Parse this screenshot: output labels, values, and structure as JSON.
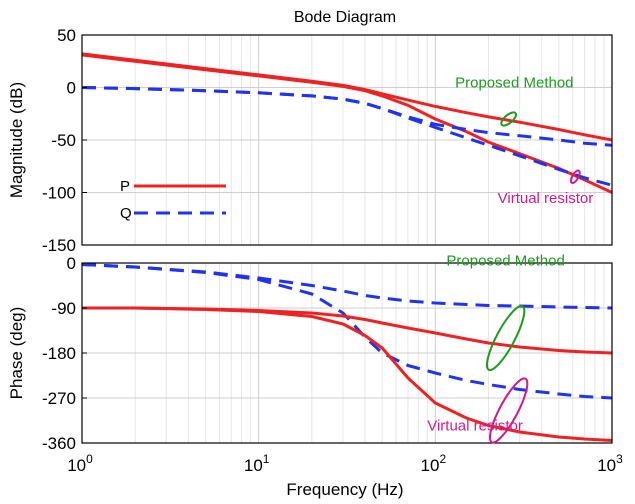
{
  "chart_data": {
    "title": "Bode Diagram",
    "type": "line",
    "xlabel": "Frequency  (Hz)",
    "xscale": "log",
    "xlim": [
      1,
      1000
    ],
    "x_ticks": [
      {
        "value": 1,
        "base": "10",
        "exp": "0"
      },
      {
        "value": 10,
        "base": "10",
        "exp": "1"
      },
      {
        "value": 100,
        "base": "10",
        "exp": "2"
      },
      {
        "value": 1000,
        "base": "10",
        "exp": "3"
      }
    ],
    "grid": true,
    "legend_position": "left",
    "colors": {
      "P": "#ee2222",
      "Q": "#2233ee",
      "proposed": "#1e9a1e",
      "virtual": "#d01a8c"
    },
    "legend": [
      {
        "name": "P",
        "style": "solid",
        "color": "#ee2222"
      },
      {
        "name": "Q",
        "style": "dashed",
        "color": "#2233ee"
      }
    ],
    "panels": [
      {
        "ylabel": "Magnitude (dB)",
        "ylim": [
          -150,
          50
        ],
        "y_ticks": [
          50,
          0,
          -50,
          -100,
          -150
        ],
        "tick_labels": [
          "50",
          "0",
          "-50",
          "-100",
          "-150"
        ],
        "annotations": [
          {
            "text": "Proposed Method",
            "color": "#1e9a1e",
            "at": [
              280,
              0
            ],
            "align": "middle"
          },
          {
            "text": "Virtual resistor",
            "color": "#d01a8c",
            "at": [
              420,
              -110
            ],
            "align": "middle"
          }
        ],
        "series": [
          {
            "name": "P",
            "style": "solid",
            "color": "#ee2222",
            "x": [
              1,
              2,
              5,
              10,
              20,
              30,
              40,
              50,
              70,
              100,
              150,
              200,
              300,
              500,
              700,
              1000
            ],
            "y": [
              32,
              26,
              18,
              12,
              6,
              2,
              -2,
              -6,
              -12,
              -18,
              -24,
              -28,
              -33,
              -40,
              -45,
              -50
            ]
          },
          {
            "name": "P",
            "style": "solid",
            "color": "#ee2222",
            "x": [
              1,
              2,
              5,
              10,
              20,
              30,
              40,
              50,
              70,
              100,
              150,
              200,
              300,
              500,
              700,
              1000
            ],
            "y": [
              31,
              25,
              17,
              11,
              5,
              1,
              -3,
              -8,
              -17,
              -30,
              -42,
              -52,
              -63,
              -77,
              -88,
              -100
            ]
          },
          {
            "name": "Q",
            "style": "dashed",
            "color": "#2233ee",
            "x": [
              1,
              2,
              5,
              10,
              20,
              30,
              40,
              50,
              70,
              100,
              150,
              200,
              300,
              500,
              700,
              1000
            ],
            "y": [
              0,
              -1,
              -3,
              -5,
              -8,
              -11,
              -15,
              -20,
              -28,
              -35,
              -40,
              -43,
              -46,
              -50,
              -53,
              -55
            ]
          },
          {
            "name": "Q",
            "style": "dashed",
            "color": "#2233ee",
            "x": [
              1,
              2,
              5,
              10,
              20,
              30,
              40,
              50,
              70,
              100,
              150,
              200,
              300,
              500,
              700,
              1000
            ],
            "y": [
              0,
              -1,
              -3,
              -5,
              -8,
              -11,
              -15,
              -20,
              -29,
              -38,
              -48,
              -55,
              -65,
              -78,
              -86,
              -93
            ]
          }
        ]
      },
      {
        "ylabel": "Phase (deg)",
        "ylim": [
          -360,
          0
        ],
        "y_ticks": [
          0,
          -90,
          -180,
          -270,
          -360
        ],
        "tick_labels": [
          "0",
          "-90",
          "-180",
          "-270",
          "-360"
        ],
        "annotations": [
          {
            "text": "Proposed Method",
            "color": "#1e9a1e",
            "at": [
              250,
              -5
            ],
            "align": "middle"
          },
          {
            "text": "Virtual resistor",
            "color": "#d01a8c",
            "at": [
              90,
              -335
            ],
            "align": "start"
          }
        ],
        "series": [
          {
            "name": "Q",
            "style": "dashed",
            "color": "#2233ee",
            "x": [
              1,
              2,
              5,
              10,
              20,
              30,
              40,
              50,
              70,
              100,
              150,
              200,
              300,
              500,
              700,
              1000
            ],
            "y": [
              -3,
              -8,
              -18,
              -30,
              -45,
              -56,
              -65,
              -70,
              -76,
              -80,
              -83,
              -85,
              -86,
              -88,
              -89,
              -90
            ]
          },
          {
            "name": "Q",
            "style": "dashed",
            "color": "#2233ee",
            "x": [
              1,
              2,
              5,
              10,
              20,
              30,
              40,
              50,
              70,
              100,
              150,
              200,
              300,
              500,
              700,
              1000
            ],
            "y": [
              -3,
              -8,
              -19,
              -33,
              -62,
              -100,
              -148,
              -180,
              -205,
              -220,
              -235,
              -243,
              -253,
              -262,
              -267,
              -270
            ]
          },
          {
            "name": "P",
            "style": "solid",
            "color": "#ee2222",
            "x": [
              1,
              2,
              5,
              10,
              20,
              30,
              40,
              50,
              70,
              100,
              150,
              200,
              300,
              500,
              700,
              1000
            ],
            "y": [
              -90,
              -90,
              -92,
              -95,
              -100,
              -106,
              -113,
              -120,
              -130,
              -140,
              -152,
              -160,
              -168,
              -175,
              -178,
              -180
            ]
          },
          {
            "name": "P",
            "style": "solid",
            "color": "#ee2222",
            "x": [
              1,
              2,
              5,
              10,
              20,
              30,
              40,
              50,
              70,
              100,
              150,
              200,
              300,
              500,
              700,
              1000
            ],
            "y": [
              -90,
              -90,
              -93,
              -97,
              -107,
              -122,
              -145,
              -170,
              -230,
              -280,
              -310,
              -325,
              -338,
              -348,
              -352,
              -355
            ]
          }
        ]
      }
    ]
  }
}
